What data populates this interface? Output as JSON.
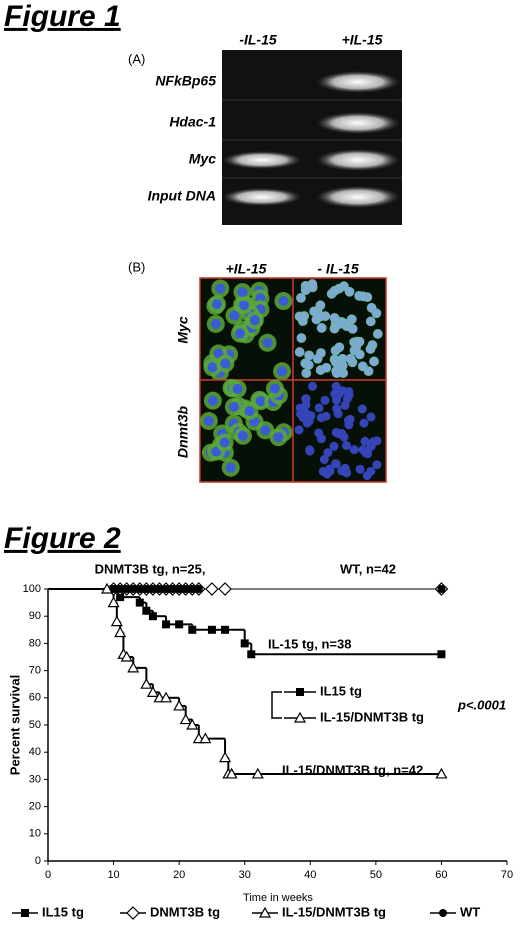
{
  "figure1": {
    "title": "Figure 1",
    "panel_a": {
      "label": "(A)",
      "columns": [
        "-IL-15",
        "+IL-15"
      ],
      "rows": [
        "NFkBp65",
        "Hdac-1",
        "Myc",
        "Input DNA"
      ]
    },
    "panel_b": {
      "label": "(B)",
      "columns": [
        "+IL-15",
        "- IL-15"
      ],
      "rows": [
        "Myc",
        "Dnmt3b"
      ]
    }
  },
  "chart_data": {
    "type": "survival",
    "title": "Figure 2",
    "ylabel": "Percent survival",
    "xlabel": "Time in weeks",
    "xlim": [
      0,
      70
    ],
    "xticks": [
      0,
      10,
      20,
      30,
      40,
      50,
      60,
      70
    ],
    "ylim": [
      0,
      100
    ],
    "yticks": [
      0,
      10,
      20,
      30,
      40,
      50,
      60,
      70,
      80,
      90,
      100
    ],
    "annotations": [
      "DNMT3B tg, n=25,",
      "WT, n=42",
      "IL-15 tg, n=38",
      "IL-15/DNMT3B tg, n=42",
      "p<.0001"
    ],
    "series": [
      {
        "name": "IL15 tg",
        "color": "#000000",
        "marker": "square",
        "x": [
          10,
          11,
          14,
          15,
          16,
          18,
          20,
          22,
          25,
          27,
          30,
          31,
          60
        ],
        "values": [
          100,
          97,
          95,
          92,
          90,
          87,
          87,
          85,
          85,
          85,
          80,
          76,
          76
        ]
      },
      {
        "name": "DNMT3B tg",
        "color": "#000000",
        "marker": "diamond",
        "x": [
          10,
          11,
          12,
          13,
          14,
          15,
          16,
          17,
          18,
          19,
          20,
          21,
          22,
          23,
          25,
          27,
          60
        ],
        "values": [
          100,
          100,
          100,
          100,
          100,
          100,
          100,
          100,
          100,
          100,
          100,
          100,
          100,
          100,
          100,
          100,
          100
        ]
      },
      {
        "name": "IL-15/DNMT3B tg",
        "color": "#000000",
        "marker": "triangle",
        "x": [
          9,
          10,
          10.5,
          11,
          11.5,
          12,
          13,
          15,
          16,
          17,
          18,
          20,
          21,
          22,
          23,
          24,
          27,
          27.5,
          28,
          32,
          60
        ],
        "values": [
          100,
          95,
          88,
          84,
          76,
          75,
          71,
          65,
          62,
          60,
          60,
          57,
          52,
          50,
          45,
          45,
          38,
          32,
          32,
          32,
          32
        ]
      },
      {
        "name": "WT",
        "color": "#000000",
        "marker": "circle",
        "x": [
          10,
          11,
          12,
          13,
          14,
          15,
          16,
          17,
          18,
          19,
          20,
          21,
          22,
          23,
          60
        ],
        "values": [
          100,
          100,
          100,
          100,
          100,
          100,
          100,
          100,
          100,
          100,
          100,
          100,
          100,
          100,
          100
        ]
      }
    ]
  }
}
